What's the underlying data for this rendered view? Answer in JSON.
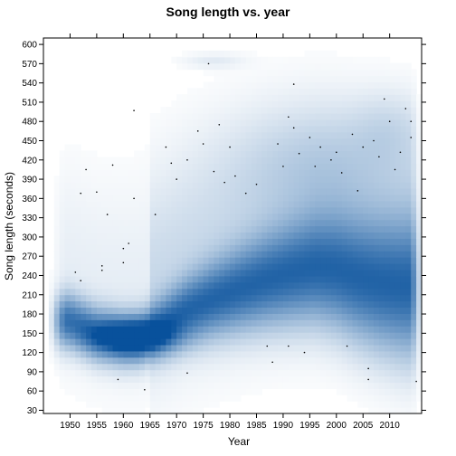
{
  "chart_data": {
    "type": "heatmap",
    "style": "smoothed density scatter",
    "title": "Song length vs. year",
    "xlabel": "Year",
    "ylabel": "Song length (seconds)",
    "xlim": [
      1945,
      2016
    ],
    "ylim": [
      25,
      610
    ],
    "x_ticks": [
      1950,
      1955,
      1960,
      1965,
      1970,
      1975,
      1980,
      1985,
      1990,
      1995,
      2000,
      2005,
      2010
    ],
    "y_ticks": [
      30,
      60,
      90,
      120,
      150,
      180,
      210,
      240,
      270,
      300,
      330,
      360,
      390,
      420,
      450,
      480,
      510,
      540,
      570,
      600
    ],
    "colors": {
      "low": "#ffffff",
      "high": "#08519c",
      "point": "#000000"
    },
    "density_ridge": [
      {
        "x": 1950,
        "y": 170
      },
      {
        "x": 1955,
        "y": 150
      },
      {
        "x": 1960,
        "y": 142
      },
      {
        "x": 1963,
        "y": 143
      },
      {
        "x": 1967,
        "y": 160
      },
      {
        "x": 1972,
        "y": 185
      },
      {
        "x": 1977,
        "y": 203
      },
      {
        "x": 1982,
        "y": 218
      },
      {
        "x": 1987,
        "y": 232
      },
      {
        "x": 1992,
        "y": 243
      },
      {
        "x": 1996,
        "y": 250
      },
      {
        "x": 2000,
        "y": 246
      },
      {
        "x": 2004,
        "y": 234
      },
      {
        "x": 2008,
        "y": 225
      },
      {
        "x": 2012,
        "y": 220
      }
    ],
    "outlier_points": [
      {
        "x": 1951,
        "y": 245
      },
      {
        "x": 1952,
        "y": 232
      },
      {
        "x": 1952,
        "y": 368
      },
      {
        "x": 1953,
        "y": 405
      },
      {
        "x": 1955,
        "y": 370
      },
      {
        "x": 1956,
        "y": 255
      },
      {
        "x": 1956,
        "y": 248
      },
      {
        "x": 1957,
        "y": 335
      },
      {
        "x": 1958,
        "y": 412
      },
      {
        "x": 1960,
        "y": 282
      },
      {
        "x": 1960,
        "y": 260
      },
      {
        "x": 1961,
        "y": 290
      },
      {
        "x": 1962,
        "y": 497
      },
      {
        "x": 1962,
        "y": 360
      },
      {
        "x": 1959,
        "y": 78
      },
      {
        "x": 1964,
        "y": 62
      },
      {
        "x": 1966,
        "y": 335
      },
      {
        "x": 1968,
        "y": 440
      },
      {
        "x": 1969,
        "y": 415
      },
      {
        "x": 1970,
        "y": 390
      },
      {
        "x": 1972,
        "y": 420
      },
      {
        "x": 1972,
        "y": 88
      },
      {
        "x": 1974,
        "y": 465
      },
      {
        "x": 1975,
        "y": 445
      },
      {
        "x": 1976,
        "y": 570
      },
      {
        "x": 1977,
        "y": 402
      },
      {
        "x": 1978,
        "y": 475
      },
      {
        "x": 1979,
        "y": 385
      },
      {
        "x": 1980,
        "y": 440
      },
      {
        "x": 1981,
        "y": 395
      },
      {
        "x": 1983,
        "y": 368
      },
      {
        "x": 1985,
        "y": 382
      },
      {
        "x": 1987,
        "y": 130
      },
      {
        "x": 1988,
        "y": 105
      },
      {
        "x": 1989,
        "y": 445
      },
      {
        "x": 1990,
        "y": 410
      },
      {
        "x": 1991,
        "y": 487
      },
      {
        "x": 1991,
        "y": 130
      },
      {
        "x": 1992,
        "y": 470
      },
      {
        "x": 1992,
        "y": 538
      },
      {
        "x": 1993,
        "y": 430
      },
      {
        "x": 1994,
        "y": 120
      },
      {
        "x": 1995,
        "y": 455
      },
      {
        "x": 1996,
        "y": 410
      },
      {
        "x": 1997,
        "y": 440
      },
      {
        "x": 1999,
        "y": 420
      },
      {
        "x": 2000,
        "y": 432
      },
      {
        "x": 2001,
        "y": 400
      },
      {
        "x": 2002,
        "y": 130
      },
      {
        "x": 2003,
        "y": 460
      },
      {
        "x": 2004,
        "y": 372
      },
      {
        "x": 2005,
        "y": 440
      },
      {
        "x": 2006,
        "y": 95
      },
      {
        "x": 2006,
        "y": 78
      },
      {
        "x": 2007,
        "y": 450
      },
      {
        "x": 2008,
        "y": 425
      },
      {
        "x": 2009,
        "y": 515
      },
      {
        "x": 2010,
        "y": 480
      },
      {
        "x": 2011,
        "y": 405
      },
      {
        "x": 2012,
        "y": 432
      },
      {
        "x": 2013,
        "y": 500
      },
      {
        "x": 2014,
        "y": 480
      },
      {
        "x": 2014,
        "y": 455
      },
      {
        "x": 2015,
        "y": 75
      }
    ]
  }
}
